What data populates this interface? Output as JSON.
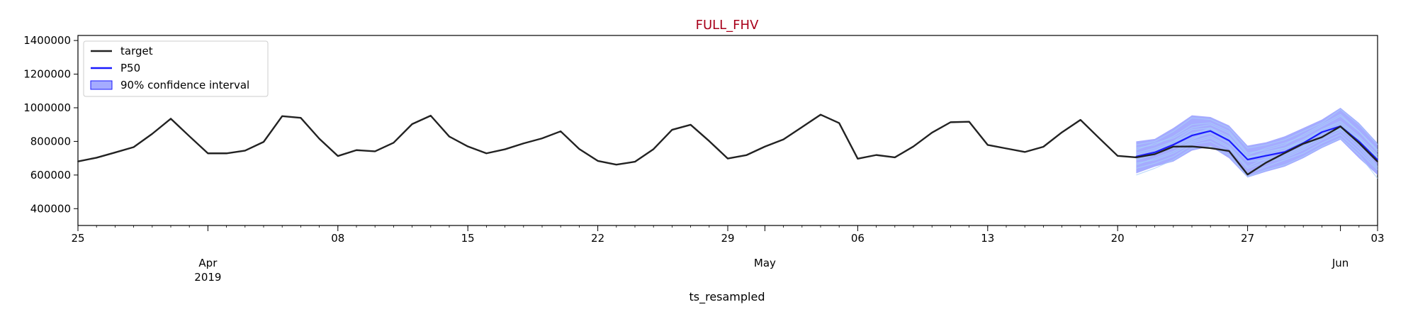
{
  "chart_data": {
    "type": "line",
    "title": "FULL_FHV",
    "xlabel": "ts_resampled",
    "ylabel": "",
    "x_start": "2019-03-25",
    "x_end": "2019-06-03",
    "ylim": [
      300000,
      1430000
    ],
    "y_ticks": [
      400000,
      600000,
      800000,
      1000000,
      1200000,
      1400000
    ],
    "y_tick_labels": [
      "400000",
      "600000",
      "800000",
      "1000000",
      "1200000",
      "1400000"
    ],
    "x_ticks": [
      {
        "date": "2019-03-25",
        "label": "25"
      },
      {
        "date": "2019-04-08",
        "label": "08"
      },
      {
        "date": "2019-04-15",
        "label": "15"
      },
      {
        "date": "2019-04-22",
        "label": "22"
      },
      {
        "date": "2019-04-29",
        "label": "29"
      },
      {
        "date": "2019-05-06",
        "label": "06"
      },
      {
        "date": "2019-05-13",
        "label": "13"
      },
      {
        "date": "2019-05-20",
        "label": "20"
      },
      {
        "date": "2019-05-27",
        "label": "27"
      },
      {
        "date": "2019-06-03",
        "label": "03"
      }
    ],
    "month_ticks": [
      {
        "date": "2019-04-01",
        "label": "Apr",
        "sub": "2019"
      },
      {
        "date": "2019-05-01",
        "label": "May",
        "sub": ""
      },
      {
        "date": "2019-06-01",
        "label": "Jun",
        "sub": ""
      }
    ],
    "grid": false,
    "legend_position": "top-left",
    "legend": [
      "target",
      "P50",
      "90% confidence interval"
    ],
    "colors": {
      "target": "#222222",
      "p50": "#1a1aff",
      "band": "#7f88ff",
      "samples": "#a8cff8",
      "title": "#a8001a"
    },
    "series": [
      {
        "name": "target",
        "x": [
          "2019-03-25",
          "2019-03-26",
          "2019-03-27",
          "2019-03-28",
          "2019-03-29",
          "2019-03-30",
          "2019-03-31",
          "2019-04-01",
          "2019-04-02",
          "2019-04-03",
          "2019-04-04",
          "2019-04-05",
          "2019-04-06",
          "2019-04-07",
          "2019-04-08",
          "2019-04-09",
          "2019-04-10",
          "2019-04-11",
          "2019-04-12",
          "2019-04-13",
          "2019-04-14",
          "2019-04-15",
          "2019-04-16",
          "2019-04-17",
          "2019-04-18",
          "2019-04-19",
          "2019-04-20",
          "2019-04-21",
          "2019-04-22",
          "2019-04-23",
          "2019-04-24",
          "2019-04-25",
          "2019-04-26",
          "2019-04-27",
          "2019-04-28",
          "2019-04-29",
          "2019-04-30",
          "2019-05-01",
          "2019-05-02",
          "2019-05-03",
          "2019-05-04",
          "2019-05-05",
          "2019-05-06",
          "2019-05-07",
          "2019-05-08",
          "2019-05-09",
          "2019-05-10",
          "2019-05-11",
          "2019-05-12",
          "2019-05-13",
          "2019-05-14",
          "2019-05-15",
          "2019-05-16",
          "2019-05-17",
          "2019-05-18",
          "2019-05-19",
          "2019-05-20",
          "2019-05-21",
          "2019-05-22",
          "2019-05-23",
          "2019-05-24",
          "2019-05-25",
          "2019-05-26",
          "2019-05-27",
          "2019-05-28",
          "2019-05-29",
          "2019-05-30",
          "2019-05-31",
          "2019-06-01",
          "2019-06-02",
          "2019-06-03"
        ],
        "values": [
          681000,
          703000,
          734000,
          766000,
          845000,
          935000,
          831000,
          729000,
          729000,
          745000,
          797000,
          950000,
          940000,
          816000,
          713000,
          748000,
          741000,
          792000,
          903000,
          953000,
          829000,
          770000,
          729000,
          753000,
          788000,
          818000,
          860000,
          755000,
          684000,
          662000,
          679000,
          754000,
          869000,
          899000,
          802000,
          698000,
          718000,
          769000,
          812000,
          885000,
          959000,
          909000,
          697000,
          719000,
          705000,
          770000,
          852000,
          914000,
          917000,
          779000,
          758000,
          737000,
          768000,
          854000,
          928000,
          820000,
          714000,
          705000,
          724000,
          769000,
          770000,
          760000,
          743000,
          603000,
          674000,
          731000,
          786000,
          825000,
          889000,
          790000,
          680000
        ]
      },
      {
        "name": "P50",
        "x": [
          "2019-05-21",
          "2019-05-22",
          "2019-05-23",
          "2019-05-24",
          "2019-05-25",
          "2019-05-26",
          "2019-05-27",
          "2019-05-28",
          "2019-05-29",
          "2019-05-30",
          "2019-05-31",
          "2019-06-01",
          "2019-06-02",
          "2019-06-03"
        ],
        "values": [
          710000,
          735000,
          780000,
          835000,
          862000,
          805000,
          692000,
          715000,
          737000,
          790000,
          855000,
          890000,
          800000,
          690000
        ]
      },
      {
        "name": "90% confidence interval",
        "x": [
          "2019-05-21",
          "2019-05-22",
          "2019-05-23",
          "2019-05-24",
          "2019-05-25",
          "2019-05-26",
          "2019-05-27",
          "2019-05-28",
          "2019-05-29",
          "2019-05-30",
          "2019-05-31",
          "2019-06-01",
          "2019-06-02",
          "2019-06-03"
        ],
        "lower": [
          610000,
          650000,
          680000,
          745000,
          770000,
          700000,
          585000,
          620000,
          650000,
          700000,
          760000,
          810000,
          700000,
          600000
        ],
        "upper": [
          800000,
          815000,
          880000,
          955000,
          945000,
          895000,
          775000,
          795000,
          830000,
          880000,
          930000,
          1000000,
          910000,
          790000
        ]
      }
    ],
    "samples": [
      [
        660000,
        700000,
        740000,
        800000,
        830000,
        770000,
        650000,
        700000,
        720000,
        770000,
        820000,
        880000,
        780000,
        650000
      ],
      [
        760000,
        780000,
        830000,
        900000,
        910000,
        860000,
        730000,
        750000,
        780000,
        840000,
        900000,
        960000,
        860000,
        740000
      ],
      [
        690000,
        720000,
        770000,
        820000,
        850000,
        790000,
        680000,
        690000,
        710000,
        760000,
        840000,
        870000,
        820000,
        700000
      ],
      [
        730000,
        760000,
        800000,
        870000,
        880000,
        830000,
        700000,
        740000,
        760000,
        810000,
        870000,
        920000,
        830000,
        720000
      ],
      [
        640000,
        670000,
        710000,
        780000,
        800000,
        740000,
        610000,
        650000,
        690000,
        730000,
        790000,
        840000,
        740000,
        630000
      ],
      [
        780000,
        800000,
        860000,
        940000,
        930000,
        880000,
        760000,
        780000,
        810000,
        860000,
        910000,
        990000,
        900000,
        780000
      ],
      [
        600000,
        640000,
        690000,
        760000,
        770000,
        720000,
        590000,
        630000,
        660000,
        710000,
        770000,
        820000,
        720000,
        580000
      ],
      [
        720000,
        750000,
        790000,
        850000,
        870000,
        820000,
        710000,
        720000,
        750000,
        800000,
        860000,
        900000,
        810000,
        710000
      ],
      [
        700000,
        730000,
        760000,
        810000,
        860000,
        800000,
        690000,
        710000,
        740000,
        780000,
        850000,
        880000,
        790000,
        680000
      ],
      [
        750000,
        790000,
        820000,
        880000,
        900000,
        850000,
        720000,
        760000,
        790000,
        830000,
        890000,
        950000,
        860000,
        750000
      ],
      [
        670000,
        690000,
        730000,
        790000,
        820000,
        760000,
        640000,
        680000,
        700000,
        750000,
        810000,
        860000,
        760000,
        640000
      ],
      [
        710000,
        740000,
        800000,
        840000,
        880000,
        810000,
        700000,
        730000,
        760000,
        800000,
        870000,
        910000,
        820000,
        700000
      ]
    ]
  }
}
